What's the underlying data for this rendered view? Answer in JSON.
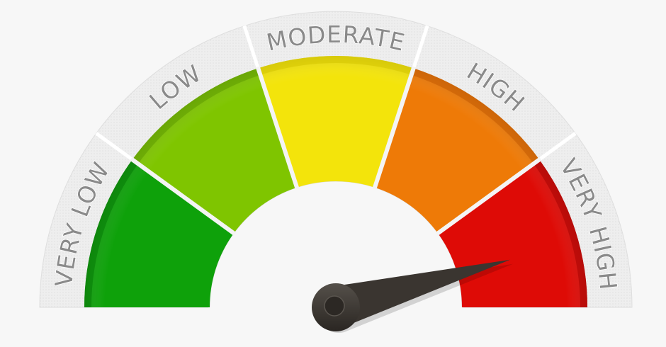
{
  "gauge": {
    "segments": [
      {
        "label": "VERY LOW",
        "color": "#0ea10a",
        "edge": "#067a05"
      },
      {
        "label": "LOW",
        "color": "#7fc500",
        "edge": "#5d9a00"
      },
      {
        "label": "MODERATE",
        "color": "#f3e40b",
        "edge": "#d4c400"
      },
      {
        "label": "HIGH",
        "color": "#ee7a07",
        "edge": "#c25a00"
      },
      {
        "label": "VERY HIGH",
        "color": "#de0b06",
        "edge": "#a80402"
      }
    ],
    "needle_level": 0.915,
    "needle_color": "#3a3530",
    "band_color": "#e9e9e9"
  }
}
